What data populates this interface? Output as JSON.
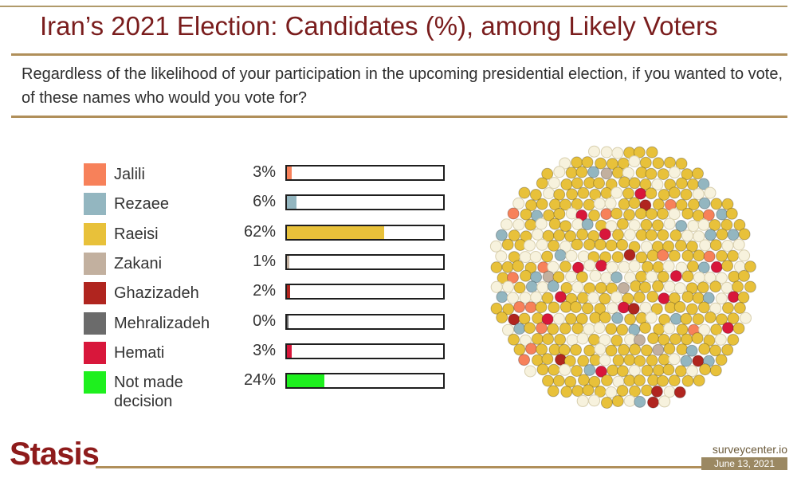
{
  "header": {
    "title": "Iran’s 2021 Election: Candidates (%), among Likely Voters",
    "question": "Regardless of the likelihood of your participation in the upcoming presidential election, if you wanted to vote, of these names who would you vote for?"
  },
  "chart_data": {
    "type": "bar",
    "categories": [
      "Jalili",
      "Rezaee",
      "Raeisi",
      "Zakani",
      "Ghazizadeh",
      "Mehralizadeh",
      "Hemati",
      "Not made decision"
    ],
    "values": [
      3,
      6,
      62,
      1,
      2,
      0,
      3,
      24
    ],
    "labels": [
      "3%",
      "6%",
      "62%",
      "1%",
      "2%",
      "0%",
      "3%",
      "24%"
    ],
    "colors": [
      "#f7815a",
      "#93b6c0",
      "#e8c13a",
      "#c2b09f",
      "#b0251f",
      "#6b6b6b",
      "#d8173b",
      "#1ef01e"
    ],
    "ylim": [
      0,
      100
    ],
    "dot_cloud_background": "#f7f2dd"
  },
  "footer": {
    "logo_text": "Stasis",
    "source": "surveycenter.io",
    "date": "June 13, 2021"
  }
}
